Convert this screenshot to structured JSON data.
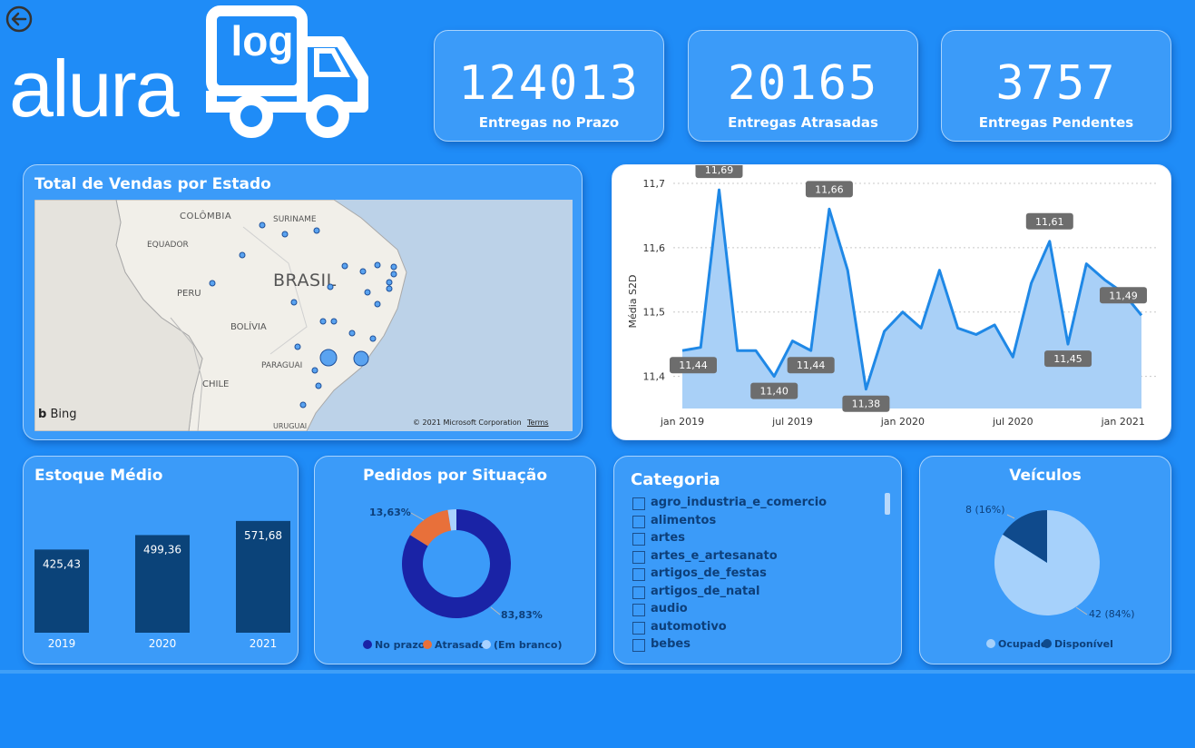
{
  "nav": {
    "back_icon": "back-arrow-icon"
  },
  "logo": {
    "wordmark": "alura",
    "badge": "log"
  },
  "kpis": [
    {
      "value": "124013",
      "label": "Entregas no Prazo"
    },
    {
      "value": "20165",
      "label": "Entregas Atrasadas"
    },
    {
      "value": "3757",
      "label": "Entregas Pendentes"
    }
  ],
  "map_card": {
    "title": "Total de Vendas por Estado",
    "labels": {
      "colombia": "COLÔMBIA",
      "suriname": "SURINAME",
      "equador": "EQUADOR",
      "brasil": "BRASIL",
      "peru": "PERU",
      "bolivia": "BOLÍVIA",
      "paraguai": "PARAGUAI",
      "chile": "CHILE",
      "uruguai": "URUGUAI"
    },
    "bing": "Bing",
    "copyright": "© 2021 Microsoft Corporation",
    "terms": "Terms"
  },
  "line_card": {
    "chart_data": {
      "type": "area",
      "ylabel": "Média S2D",
      "ylim": [
        11.35,
        11.7
      ],
      "yticks": [
        "11,7",
        "11,6",
        "11,5",
        "11,4"
      ],
      "xticks": [
        "jan 2019",
        "jul 2019",
        "jan 2020",
        "jul 2020",
        "jan 2021"
      ],
      "x": [
        "2019-01",
        "2019-02",
        "2019-03",
        "2019-04",
        "2019-05",
        "2019-06",
        "2019-07",
        "2019-08",
        "2019-09",
        "2019-10",
        "2019-11",
        "2019-12",
        "2020-01",
        "2020-02",
        "2020-03",
        "2020-04",
        "2020-05",
        "2020-06",
        "2020-07",
        "2020-08",
        "2020-09",
        "2020-10",
        "2020-11",
        "2020-12",
        "2021-01",
        "2021-02"
      ],
      "values": [
        11.44,
        11.445,
        11.69,
        11.44,
        11.44,
        11.4,
        11.455,
        11.44,
        11.66,
        11.565,
        11.38,
        11.47,
        11.5,
        11.475,
        11.565,
        11.475,
        11.465,
        11.48,
        11.43,
        11.545,
        11.61,
        11.45,
        11.575,
        11.55,
        11.53,
        11.495
      ],
      "data_labels": [
        {
          "index": 0,
          "text": "11,44"
        },
        {
          "index": 2,
          "text": "11,69"
        },
        {
          "index": 5,
          "text": "11,40"
        },
        {
          "index": 7,
          "text": "11,44"
        },
        {
          "index": 8,
          "text": "11,66"
        },
        {
          "index": 10,
          "text": "11,38"
        },
        {
          "index": 20,
          "text": "11,61"
        },
        {
          "index": 21,
          "text": "11,45"
        },
        {
          "index": 25,
          "text": "11,49"
        }
      ]
    }
  },
  "stock_card": {
    "title": "Estoque Médio",
    "chart_data": {
      "type": "bar",
      "categories": [
        "2019",
        "2020",
        "2021"
      ],
      "values": [
        425.43,
        499.36,
        571.68
      ],
      "value_labels": [
        "425,43",
        "499,36",
        "571,68"
      ]
    }
  },
  "orders_card": {
    "title": "Pedidos por Situação",
    "chart_data": {
      "type": "pie",
      "slices": [
        {
          "name": "No prazo",
          "value": 83.83,
          "label": "83,83%",
          "color": "#1a23a6"
        },
        {
          "name": "Atrasado",
          "value": 13.63,
          "label": "13,63%",
          "color": "#e8703a"
        },
        {
          "name": "(Em branco)",
          "value": 2.54,
          "label": "",
          "color": "#a9d2ff"
        }
      ],
      "legend": [
        "No prazo",
        "Atrasado",
        "(Em branco)"
      ]
    }
  },
  "category_card": {
    "title": "Categoria",
    "items": [
      "agro_industria_e_comercio",
      "alimentos",
      "artes",
      "artes_e_artesanato",
      "artigos_de_festas",
      "artigos_de_natal",
      "audio",
      "automotivo",
      "bebes"
    ]
  },
  "vehicles_card": {
    "title": "Veículos",
    "chart_data": {
      "type": "pie",
      "slices": [
        {
          "name": "Ocupado",
          "value": 42,
          "label": "42 (84%)",
          "color": "#a6d1fb"
        },
        {
          "name": "Disponível",
          "value": 8,
          "label": "8 (16%)",
          "color": "#0f4a8c"
        }
      ],
      "legend": [
        "Ocupado",
        "Disponível"
      ]
    }
  }
}
